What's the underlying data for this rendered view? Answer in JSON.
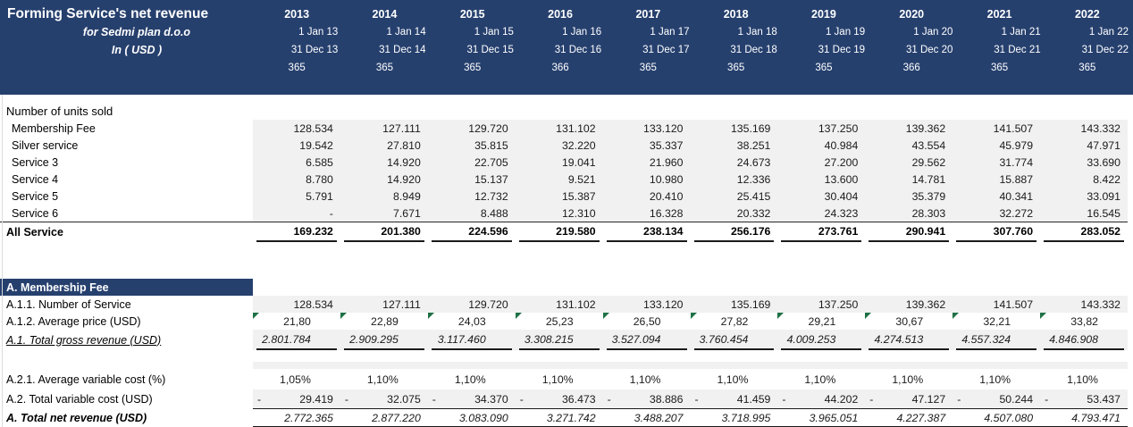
{
  "colors": {
    "band_bg": "#26406E",
    "row_fill": "#F1F1F1",
    "flag_green": "#1E7145",
    "line": "#1a1a1a"
  },
  "header": {
    "title": "Forming Service's net revenue",
    "subtitle_for": "for Sedmi plan d.o.o",
    "subtitle_unit": "In ( USD )",
    "years": [
      "2013",
      "2014",
      "2015",
      "2016",
      "2017",
      "2018",
      "2019",
      "2020",
      "2021",
      "2022"
    ],
    "start_dates": [
      "1 Jan 13",
      "1 Jan 14",
      "1 Jan 15",
      "1 Jan 16",
      "1 Jan 17",
      "1 Jan 18",
      "1 Jan 19",
      "1 Jan 20",
      "1 Jan 21",
      "1 Jan 22"
    ],
    "end_dates": [
      "31 Dec 13",
      "31 Dec 14",
      "31 Dec 15",
      "31 Dec 16",
      "31 Dec 17",
      "31 Dec 18",
      "31 Dec 19",
      "31 Dec 20",
      "31 Dec 21",
      "31 Dec 22"
    ],
    "days": [
      "365",
      "365",
      "365",
      "366",
      "365",
      "365",
      "365",
      "366",
      "365",
      "365"
    ]
  },
  "units": {
    "title": "Number of units sold",
    "rows": [
      {
        "label": "Membership Fee",
        "values": [
          "128.534",
          "127.111",
          "129.720",
          "131.102",
          "133.120",
          "135.169",
          "137.250",
          "139.362",
          "141.507",
          "143.332"
        ]
      },
      {
        "label": "Silver service",
        "values": [
          "19.542",
          "27.810",
          "35.815",
          "32.220",
          "35.337",
          "38.251",
          "40.984",
          "43.554",
          "45.979",
          "47.971"
        ]
      },
      {
        "label": "Service 3",
        "values": [
          "6.585",
          "14.920",
          "22.705",
          "19.041",
          "21.960",
          "24.673",
          "27.200",
          "29.562",
          "31.774",
          "33.690"
        ]
      },
      {
        "label": "Service 4",
        "values": [
          "8.780",
          "14.920",
          "15.137",
          "9.521",
          "10.980",
          "12.336",
          "13.600",
          "14.781",
          "15.887",
          "8.422"
        ]
      },
      {
        "label": "Service 5",
        "values": [
          "5.791",
          "8.949",
          "12.732",
          "15.387",
          "20.410",
          "25.415",
          "30.404",
          "35.379",
          "40.341",
          "33.091"
        ]
      },
      {
        "label": "Service 6",
        "values": [
          "-",
          "7.671",
          "8.488",
          "12.310",
          "16.328",
          "20.332",
          "24.323",
          "28.303",
          "32.272",
          "16.545"
        ]
      }
    ],
    "total": {
      "label": "All Service",
      "values": [
        "169.232",
        "201.380",
        "224.596",
        "219.580",
        "238.134",
        "256.176",
        "273.761",
        "290.941",
        "307.760",
        "283.052"
      ]
    }
  },
  "membership": {
    "title": "A. Membership Fee",
    "number_of_service": {
      "label": "A.1.1. Number of Service",
      "values": [
        "128.534",
        "127.111",
        "129.720",
        "131.102",
        "133.120",
        "135.169",
        "137.250",
        "139.362",
        "141.507",
        "143.332"
      ]
    },
    "average_price": {
      "label": "A.1.2. Average price (USD)",
      "flag": "green-corner-triangle",
      "values": [
        "21,80",
        "22,89",
        "24,03",
        "25,23",
        "26,50",
        "27,82",
        "29,21",
        "30,67",
        "32,21",
        "33,82"
      ]
    },
    "gross_revenue": {
      "label": "A.1. Total gross revenue (USD)",
      "values": [
        "2.801.784",
        "2.909.295",
        "3.117.460",
        "3.308.215",
        "3.527.094",
        "3.760.454",
        "4.009.253",
        "4.274.513",
        "4.557.324",
        "4.846.908"
      ]
    },
    "avg_variable_cost_pct": {
      "label": "A.2.1. Average variable cost (%)",
      "values": [
        "1,05%",
        "1,10%",
        "1,10%",
        "1,10%",
        "1,10%",
        "1,10%",
        "1,10%",
        "1,10%",
        "1,10%",
        "1,10%"
      ]
    },
    "total_variable_cost": {
      "label": "A.2. Total variable cost (USD)",
      "minus": "-",
      "values": [
        "29.419",
        "32.075",
        "34.370",
        "36.473",
        "38.886",
        "41.459",
        "44.202",
        "47.127",
        "50.244",
        "53.437"
      ]
    },
    "net_revenue": {
      "label": "A. Total net revenue  (USD)",
      "values": [
        "2.772.365",
        "2.877.220",
        "3.083.090",
        "3.271.742",
        "3.488.207",
        "3.718.995",
        "3.965.051",
        "4.227.387",
        "4.507.080",
        "4.793.471"
      ]
    }
  }
}
